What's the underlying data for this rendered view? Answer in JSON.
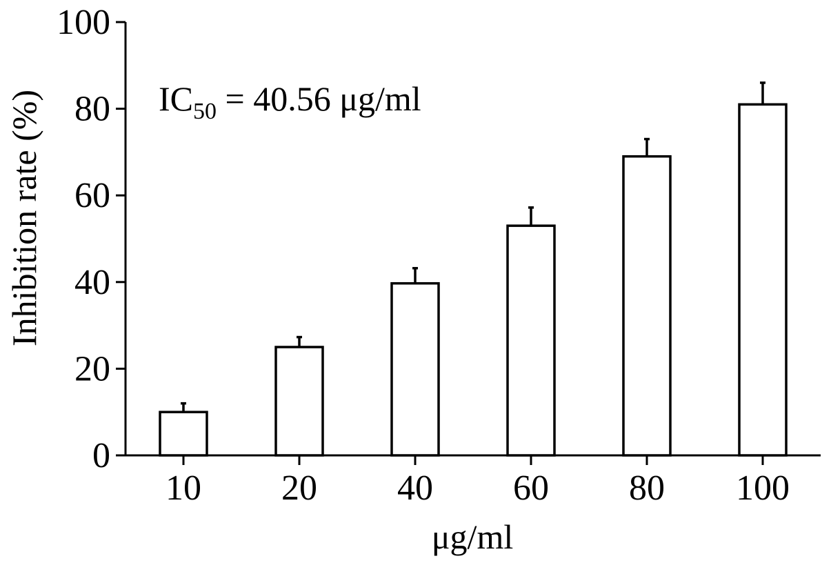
{
  "chart_data": {
    "type": "bar",
    "categories": [
      "10",
      "20",
      "40",
      "60",
      "80",
      "100"
    ],
    "values": [
      10,
      25,
      39.7,
      53,
      69,
      81
    ],
    "errors": [
      2,
      2.3,
      3.5,
      4.2,
      4,
      5
    ],
    "xlabel": "μg/ml",
    "ylabel": "Inhibition rate (%)",
    "ylim": [
      0,
      100
    ],
    "yticks": [
      0,
      20,
      40,
      60,
      80,
      100
    ],
    "annotation": {
      "prefix": "IC",
      "subscript": "50",
      "suffix": " = 40.56 μg/ml"
    },
    "bar_fill": "#ffffff",
    "bar_stroke": "#000000",
    "grid": false,
    "legend": "none"
  }
}
